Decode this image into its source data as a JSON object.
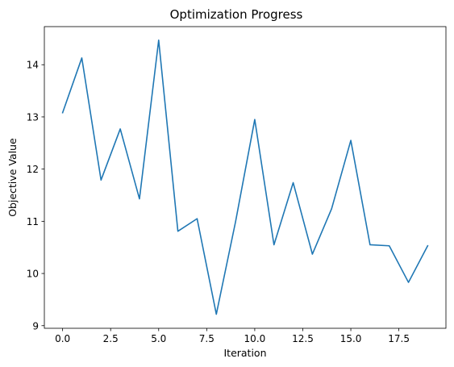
{
  "chart_data": {
    "type": "line",
    "title": "Optimization Progress",
    "xlabel": "Iteration",
    "ylabel": "Objective Value",
    "xlim": [
      -0.95,
      19.95
    ],
    "ylim": [
      8.95,
      14.73
    ],
    "x_ticks": [
      0.0,
      2.5,
      5.0,
      7.5,
      10.0,
      12.5,
      15.0,
      17.5
    ],
    "x_tick_labels": [
      "0.0",
      "2.5",
      "5.0",
      "7.5",
      "10.0",
      "12.5",
      "15.0",
      "17.5"
    ],
    "y_ticks": [
      9,
      10,
      11,
      12,
      13,
      14
    ],
    "y_tick_labels": [
      "9",
      "10",
      "11",
      "12",
      "13",
      "14"
    ],
    "grid": false,
    "line_color": "#1f77b4",
    "series": [
      {
        "x": [
          0,
          1,
          2,
          3,
          4,
          5,
          6,
          7,
          8,
          9,
          10,
          11,
          12,
          13,
          14,
          15,
          16,
          17,
          18,
          19
        ],
        "values": [
          13.08,
          14.13,
          11.79,
          12.77,
          11.43,
          14.47,
          10.81,
          11.05,
          9.22,
          10.99,
          12.95,
          10.55,
          11.74,
          10.37,
          11.24,
          12.55,
          10.55,
          10.53,
          9.83,
          10.53
        ]
      }
    ]
  }
}
